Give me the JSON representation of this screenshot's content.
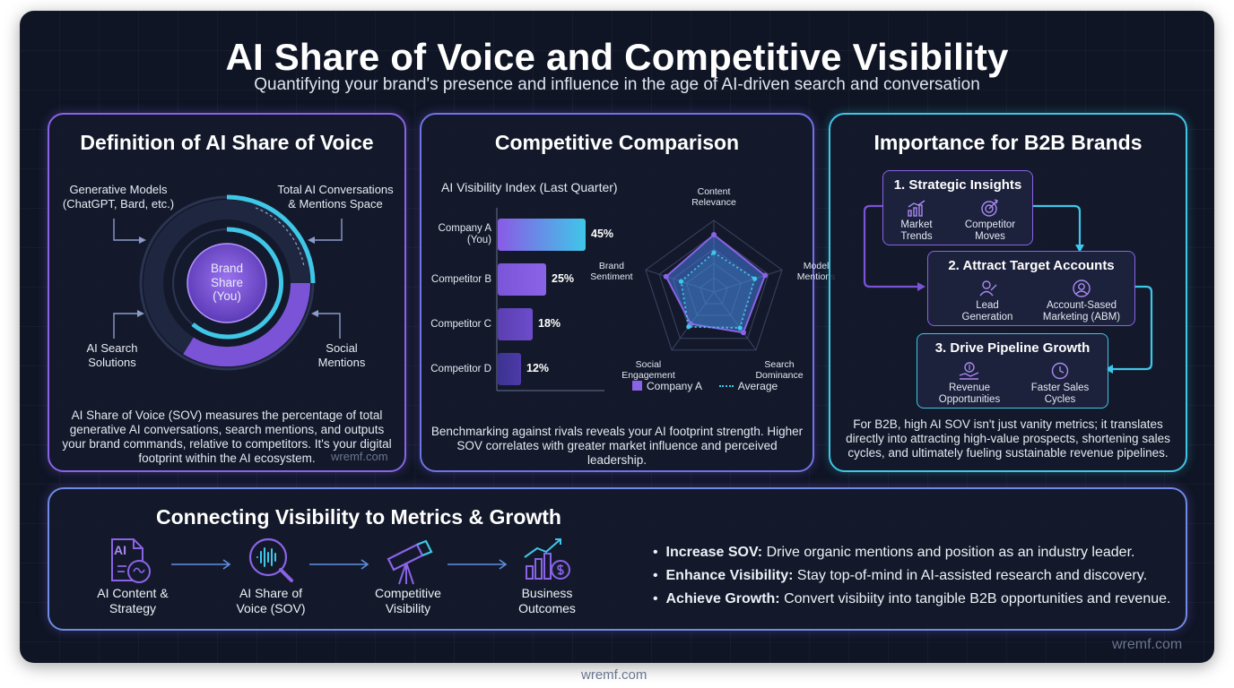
{
  "header": {
    "title": "AI Share of Voice and Competitive Visibility",
    "subtitle": "Quantifying your brand's presence and influence in the age of AI-driven search and conversation"
  },
  "definition": {
    "title": "Definition of AI Share of Voice",
    "labels": {
      "top_left": [
        "Generative Models",
        "(ChatGPT, Bard, etc.)"
      ],
      "top_right": [
        "Total AI Conversations",
        "& Mentions Space"
      ],
      "bottom_left": [
        "AI Search",
        "Solutions"
      ],
      "bottom_right": [
        "Social",
        "Mentions"
      ],
      "center": [
        "Brand",
        "Share",
        "(You)"
      ]
    },
    "description": [
      "AI Share of Voice (SOV) measures the percentage of total",
      "generative AI conversations, search mentions, and outputs",
      "your brand commands, relative to competitors. It's your digital",
      "footprint within the AI ecosystem."
    ],
    "watermark": "wremf.com"
  },
  "comparison": {
    "title": "Competitive Comparison",
    "chart_title": "AI Visibility Index (Last Quarter)",
    "description": [
      "Benchmarking against rivals reveals your AI footprint strength. Higher",
      "SOV correlates with greater market influence and perceived leadership."
    ],
    "legend": {
      "company": "Company A",
      "average": "Average"
    },
    "radar_axes": [
      [
        "Content",
        "Relevance"
      ],
      [
        "Model",
        "Mentions"
      ],
      [
        "Search",
        "Dominance"
      ],
      [
        "Social",
        "Engagement"
      ],
      [
        "Brand",
        "Sentiment"
      ]
    ]
  },
  "chart_data": [
    {
      "type": "bar",
      "title": "AI Visibility Index (Last Quarter)",
      "categories": [
        "Company A (You)",
        "Competitor B",
        "Competitor C",
        "Competitor D"
      ],
      "category_lines": [
        [
          "Company A",
          "(You)"
        ],
        [
          "Competitor B"
        ],
        [
          "Competitor C"
        ],
        [
          "Competitor D"
        ]
      ],
      "values": [
        45,
        25,
        18,
        12
      ],
      "value_labels": [
        "45%",
        "25%",
        "18%",
        "12%"
      ],
      "xlim": [
        0,
        60
      ]
    },
    {
      "type": "radar",
      "axes": [
        "Content Relevance",
        "Model Mentions",
        "Search Dominance",
        "Social Engagement",
        "Brand Sentiment"
      ],
      "series": [
        {
          "name": "Company A",
          "values": [
            0.8,
            0.75,
            0.7,
            0.55,
            0.7
          ]
        },
        {
          "name": "Average",
          "values": [
            0.55,
            0.6,
            0.62,
            0.6,
            0.48
          ]
        }
      ],
      "rlim": [
        0,
        1
      ]
    }
  ],
  "importance": {
    "title": "Importance for B2B Brands",
    "steps": [
      {
        "title": "1. Strategic Insights",
        "items": [
          [
            "Market",
            "Trends"
          ],
          [
            "Competitor",
            "Moves"
          ]
        ]
      },
      {
        "title": "2. Attract Target Accounts",
        "items": [
          [
            "Lead",
            "Generation"
          ],
          [
            "Account-Sased",
            "Marketing (ABM)"
          ]
        ]
      },
      {
        "title": "3. Drive Pipeline Growth",
        "items": [
          [
            "Revenue",
            "Opportunities"
          ],
          [
            "Faster Sales",
            "Cycles"
          ]
        ]
      }
    ],
    "description": [
      "For B2B, high AI SOV isn't just vanity metrics; it translates",
      "directly into attracting high-value prospects, shortening sales",
      "cycles, and ultimately fueling sustainable revenue pipelines."
    ]
  },
  "growth": {
    "title": "Connecting Visibility to Metrics & Growth",
    "flow": [
      [
        "AI Content &",
        "Strategy"
      ],
      [
        "AI Share of",
        "Voice (SOV)"
      ],
      [
        "Competitive",
        "Visibility"
      ],
      [
        "Business",
        "Outcomes"
      ]
    ],
    "doc_icon_text": "AI",
    "bullets": [
      {
        "bold": "Increase SOV:",
        "text": " Drive organic mentions and position as an industry leader."
      },
      {
        "bold": "Enhance Visibility:",
        "text": " Stay top-of-mind in AI-assisted research and discovery."
      },
      {
        "bold": "Achieve Growth:",
        "text": " Convert visibiity into tangible B2B opportunities and revenue."
      }
    ]
  },
  "watermarks": {
    "frame": "wremf.com",
    "footer": "wremf.com"
  },
  "colors": {
    "purple": "#8a63e6",
    "cyan": "#3fc7e8",
    "background": "#0f1524"
  }
}
